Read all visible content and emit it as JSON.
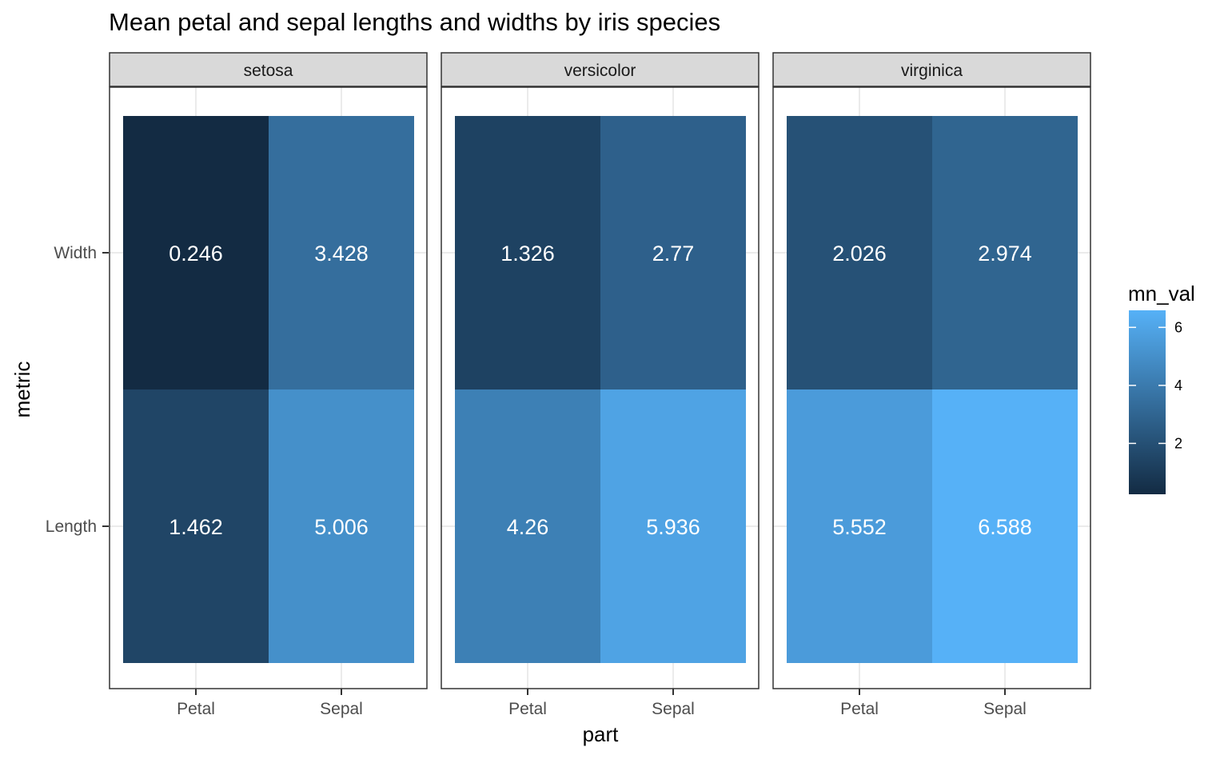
{
  "chart_data": {
    "type": "heatmap",
    "title": "Mean petal and sepal lengths and widths by iris species",
    "xlabel": "part",
    "ylabel": "metric",
    "facets": [
      "setosa",
      "versicolor",
      "virginica"
    ],
    "x_categories": [
      "Petal",
      "Sepal"
    ],
    "y_categories": [
      "Length",
      "Width"
    ],
    "values": {
      "setosa": {
        "Petal": {
          "Width": 0.246,
          "Length": 1.462
        },
        "Sepal": {
          "Width": 3.428,
          "Length": 5.006
        }
      },
      "versicolor": {
        "Petal": {
          "Width": 1.326,
          "Length": 4.26
        },
        "Sepal": {
          "Width": 2.77,
          "Length": 5.936
        }
      },
      "virginica": {
        "Petal": {
          "Width": 2.026,
          "Length": 5.552
        },
        "Sepal": {
          "Width": 2.974,
          "Length": 6.588
        }
      }
    },
    "labels": {
      "setosa": {
        "Petal": {
          "Width": "0.246",
          "Length": "1.462"
        },
        "Sepal": {
          "Width": "3.428",
          "Length": "5.006"
        }
      },
      "versicolor": {
        "Petal": {
          "Width": "1.326",
          "Length": "4.26"
        },
        "Sepal": {
          "Width": "2.77",
          "Length": "5.936"
        }
      },
      "virginica": {
        "Petal": {
          "Width": "2.026",
          "Length": "5.552"
        },
        "Sepal": {
          "Width": "2.974",
          "Length": "6.588"
        }
      }
    },
    "legend": {
      "title": "mn_val",
      "ticks": [
        2,
        4,
        6
      ],
      "tick_labels": [
        "2",
        "4",
        "6"
      ],
      "range": [
        0.246,
        6.588
      ],
      "colors": [
        "#132B43",
        "#56B1F7"
      ],
      "placement": "right"
    },
    "grid": true
  }
}
